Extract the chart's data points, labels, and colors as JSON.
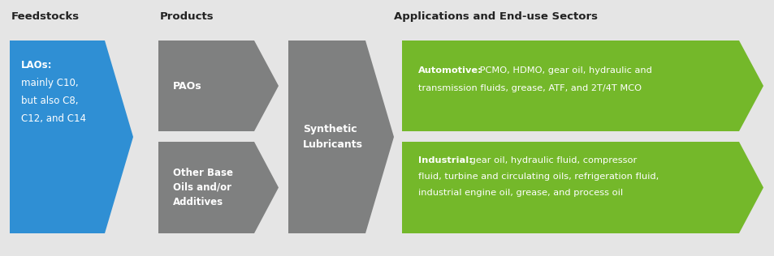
{
  "bg_color": "#e5e5e5",
  "title_color": "#222222",
  "white": "#ffffff",
  "blue_color": "#2f8fd4",
  "gray_color": "#7f8080",
  "green_color": "#74b82a",
  "header_feedstocks": "Feedstocks",
  "header_products": "Products",
  "header_applications": "Applications and End-use Sectors",
  "lao_text_line1": "LAOs:",
  "lao_text_line2": "mainly C10,",
  "lao_text_line3": "but also C8,",
  "lao_text_line4": "C12, and C14",
  "pao_text": "PAOs",
  "other_base_text": "Other Base\nOils and/or\nAdditives",
  "synth_lub_text": "Synthetic\nLubricants",
  "automotive_bold": "Automotive:",
  "automotive_rest": " PCMO, HDMO, gear oil, hydraulic and\ntransmission fluids, grease, ATF, and 2T/4T MCO",
  "industrial_bold": "Industrial:",
  "industrial_rest": " gear oil, hydraulic fluid, compressor\nfluid, turbine and circulating oils, refrigeration fluid,\nindustrial engine oil, grease, and process oil",
  "figw": 9.54,
  "figh": 3.16,
  "dpi": 100
}
